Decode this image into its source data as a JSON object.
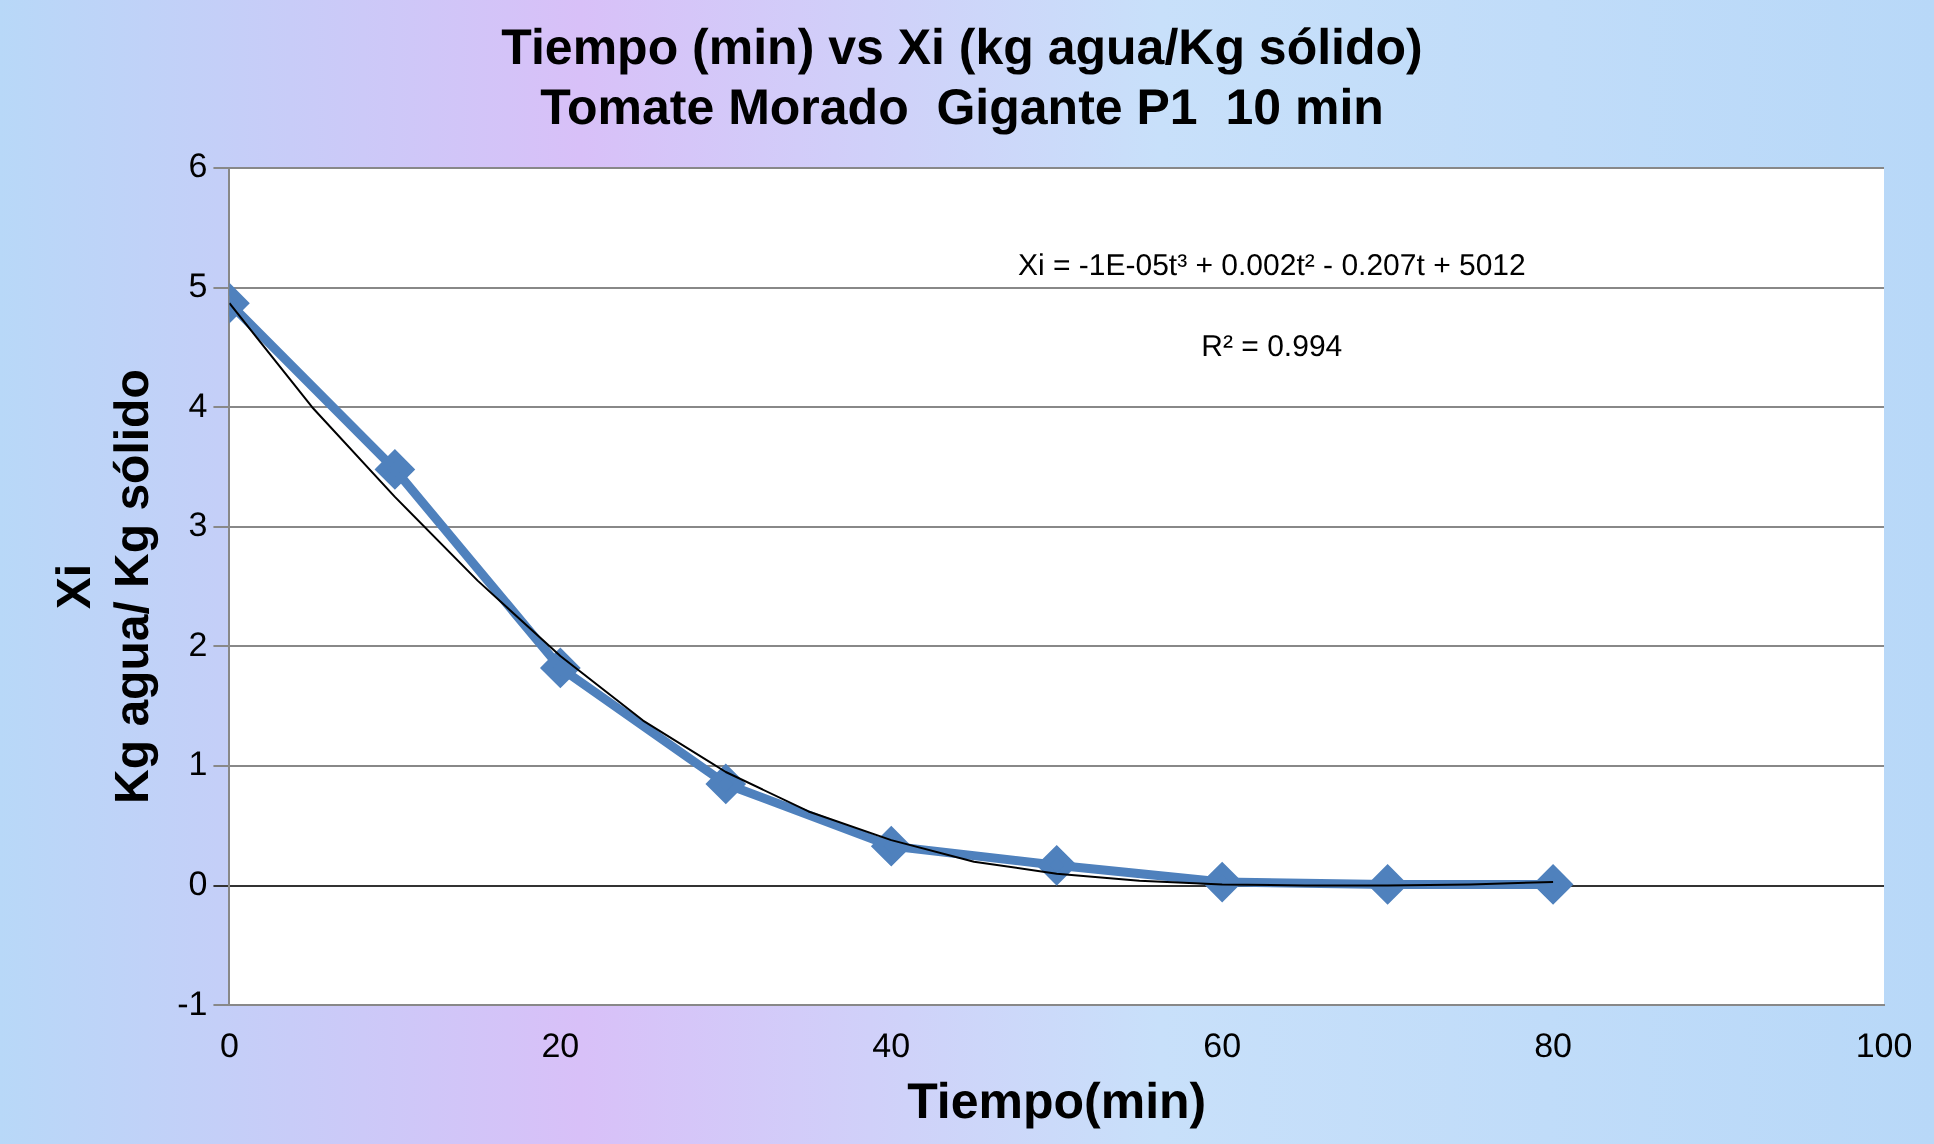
{
  "chart_data": {
    "type": "line",
    "title": "Tiempo (min) vs Xi (kg agua/Kg sólido)\nTomate Morado  Gigante P1  10 min",
    "xlabel": "Tiempo(min)",
    "ylabel": "Xi\nKg agua/ Kg sólido",
    "x": [
      0,
      10,
      20,
      30,
      40,
      50,
      60,
      70,
      80
    ],
    "series": [
      {
        "color": "#4f81bd",
        "values": [
          4.87,
          3.48,
          1.82,
          0.85,
          0.33,
          0.17,
          0.03,
          0.01,
          0.01
        ],
        "marker": "diamond"
      },
      {
        "type": "line",
        "color": "#000000",
        "marker": "none",
        "x": [
          0,
          5,
          10,
          15,
          20,
          25,
          30,
          35,
          40,
          45,
          50,
          55,
          60,
          65,
          70,
          75,
          80
        ],
        "values": [
          4.87,
          4.0,
          3.25,
          2.55,
          1.92,
          1.38,
          0.95,
          0.62,
          0.38,
          0.2,
          0.1,
          0.04,
          0.01,
          0.0,
          0.0,
          0.01,
          0.03
        ]
      }
    ],
    "xlim": [
      0,
      100
    ],
    "xticks": [
      0,
      20,
      40,
      60,
      80,
      100
    ],
    "ylim": [
      -1,
      6
    ],
    "yticks": [
      -1,
      0,
      1,
      2,
      3,
      4,
      5,
      6
    ],
    "grid": "y",
    "legend": false,
    "line_style": "solid",
    "annotations": [
      "Xi = -1E-05t³ + 0.002t² - 0.207t + 5012",
      "R² = 0.994"
    ]
  }
}
